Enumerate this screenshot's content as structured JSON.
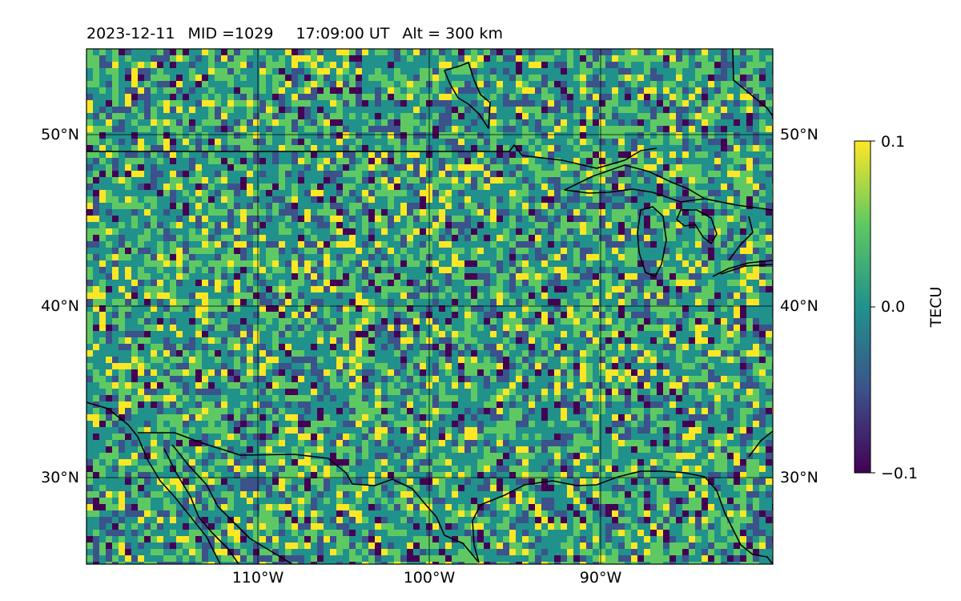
{
  "title": {
    "date": "2023-12-11",
    "mid": "MID =1029",
    "time": "17:09:00  UT",
    "alt": "Alt = 300 km"
  },
  "map": {
    "lon_range": [
      -120,
      -80
    ],
    "lat_range": [
      25,
      55
    ],
    "grid_lines": {
      "lon": [
        -110,
        -100,
        -90
      ],
      "lat": [
        30,
        40,
        50
      ]
    },
    "lon_labels": [
      "110°W",
      "100°W",
      "90°W"
    ],
    "lat_labels": [
      "30°N",
      "40°N",
      "50°N"
    ],
    "field_description_values": "detrended TEC perturbation, mostly near 0.0 with small yellow (+0.1) and purple (-0.1) patches"
  },
  "colorbar": {
    "label": "TECU",
    "ticks": [
      "0.1",
      "0.0",
      "−0.1"
    ],
    "range": [
      -0.1,
      0.1
    ],
    "colormap": "viridis",
    "colors": [
      "#440154",
      "#3b528b",
      "#21918c",
      "#5ec962",
      "#fde725"
    ]
  }
}
